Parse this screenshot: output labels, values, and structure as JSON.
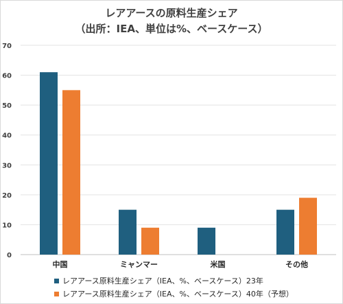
{
  "chart_data": {
    "type": "bar",
    "title": "レアアースの原料生産シェア",
    "subtitle": "（出所：IEA、単位は%、ベースケース）",
    "categories": [
      "中国",
      "ミャンマー",
      "米国",
      "その他"
    ],
    "series": [
      {
        "name": "レアアース原料生産シェア（IEA、%、ベースケース）23年",
        "color": "#1f5f7f",
        "values": [
          61,
          15,
          9,
          15
        ]
      },
      {
        "name": "レアアース原料生産シェア（IEA、%、ベースケース）40年（予想）",
        "color": "#ed7d31",
        "values": [
          55,
          9,
          0,
          19
        ]
      }
    ],
    "ylim": [
      0,
      70
    ],
    "yticks": [
      0,
      10,
      20,
      30,
      40,
      50,
      60,
      70
    ],
    "grid": true,
    "legend": "bottom-left"
  }
}
